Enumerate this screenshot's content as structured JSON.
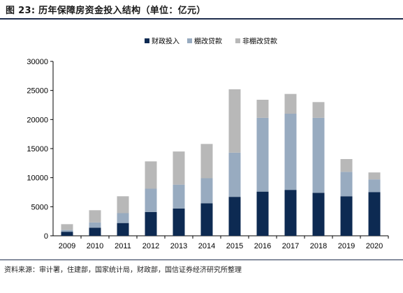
{
  "figure": {
    "title": "图 23:  历年保障房资金投入结构（单位：亿元）",
    "source": "资料来源：审计署，住建部，国家统计局，财政部，国信证券经济研究所整理"
  },
  "chart_data": {
    "type": "bar",
    "stacked": true,
    "categories": [
      "2009",
      "2010",
      "2011",
      "2012",
      "2013",
      "2014",
      "2015",
      "2016",
      "2017",
      "2018",
      "2019",
      "2020"
    ],
    "series": [
      {
        "name": "财政投入",
        "color": "#0d2a52",
        "values": [
          700,
          1400,
          2200,
          4100,
          4700,
          5600,
          6700,
          7600,
          7900,
          7400,
          6800,
          7500
        ]
      },
      {
        "name": "棚改贷款",
        "color": "#98abc0",
        "values": [
          300,
          900,
          1700,
          4000,
          4100,
          4300,
          7600,
          12700,
          13100,
          12900,
          4200,
          2200
        ]
      },
      {
        "name": "非棚改贷款",
        "color": "#b8b8b8",
        "values": [
          1000,
          2100,
          2900,
          4700,
          5700,
          5900,
          10900,
          3100,
          3400,
          2700,
          2200,
          1200
        ]
      }
    ],
    "ylim": [
      0,
      30000
    ],
    "yticks": [
      "0",
      "5000",
      "10000",
      "15000",
      "20000",
      "25000",
      "30000"
    ],
    "grid": false,
    "legend_position": "top"
  }
}
